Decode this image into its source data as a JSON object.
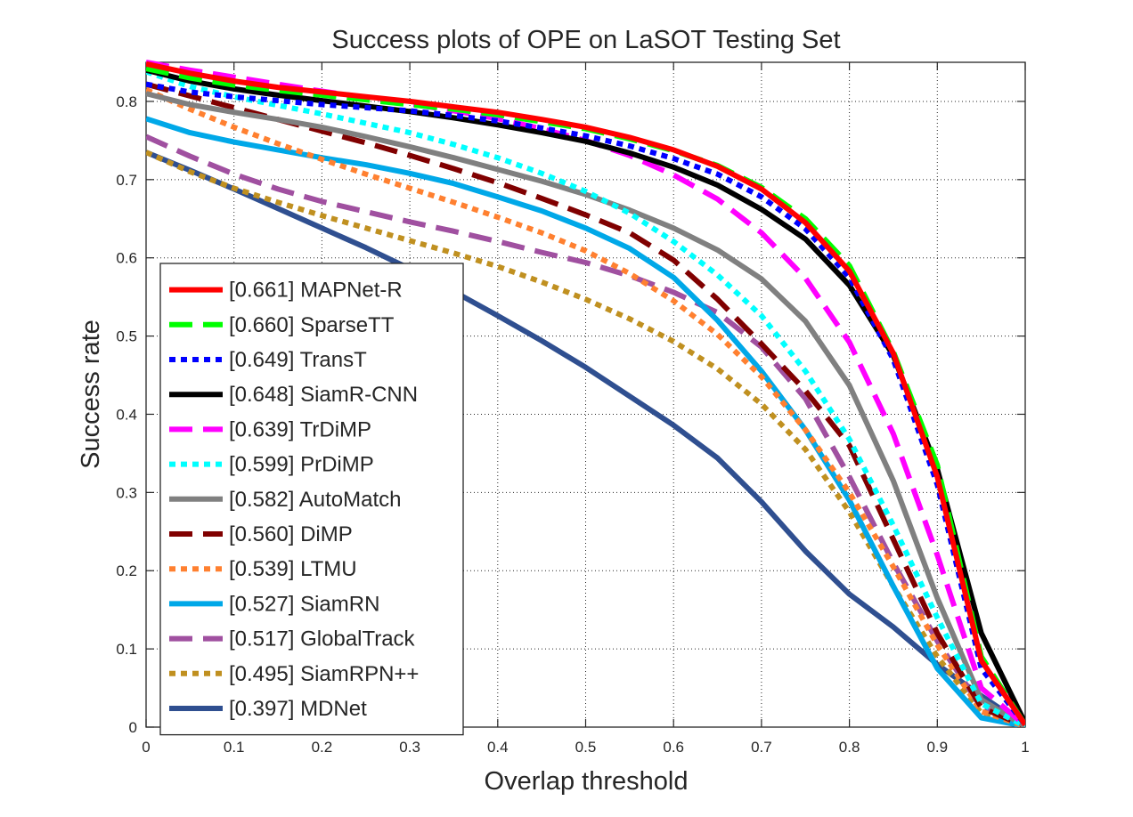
{
  "chart_data": {
    "type": "line",
    "title": "Success plots of OPE on LaSOT Testing Set",
    "xlabel": "Overlap threshold",
    "ylabel": "Success rate",
    "xlim": [
      0,
      1
    ],
    "ylim": [
      0,
      0.85
    ],
    "grid": "on",
    "legend_position": "bottom-left",
    "x_ticks": [
      0,
      0.1,
      0.2,
      0.3,
      0.4,
      0.5,
      0.6,
      0.7,
      0.8,
      0.9,
      1
    ],
    "x_tick_labels": [
      "0",
      "0.1",
      "0.2",
      "0.3",
      "0.4",
      "0.5",
      "0.6",
      "0.7",
      "0.8",
      "0.9",
      "1"
    ],
    "y_ticks": [
      0,
      0.1,
      0.2,
      0.3,
      0.4,
      0.5,
      0.6,
      0.7,
      0.8
    ],
    "y_tick_labels": [
      "0",
      "0.1",
      "0.2",
      "0.3",
      "0.4",
      "0.5",
      "0.6",
      "0.7",
      "0.8"
    ],
    "x": [
      0,
      0.05,
      0.1,
      0.15,
      0.2,
      0.25,
      0.3,
      0.35,
      0.4,
      0.45,
      0.5,
      0.55,
      0.6,
      0.65,
      0.7,
      0.75,
      0.8,
      0.85,
      0.9,
      0.95,
      1
    ],
    "series": [
      {
        "name": "MAPNet-R",
        "auc": "[0.661]",
        "label": "[0.661] MAPNet-R",
        "color": "#ff0000",
        "style": "solid",
        "values": [
          0.848,
          0.836,
          0.826,
          0.818,
          0.812,
          0.806,
          0.8,
          0.793,
          0.786,
          0.777,
          0.767,
          0.754,
          0.738,
          0.717,
          0.688,
          0.645,
          0.583,
          0.478,
          0.32,
          0.085,
          0.003
        ]
      },
      {
        "name": "SparseTT",
        "auc": "[0.660]",
        "label": "[0.660] SparseTT",
        "color": "#00ff00",
        "style": "dash",
        "values": [
          0.842,
          0.83,
          0.821,
          0.814,
          0.808,
          0.802,
          0.796,
          0.79,
          0.783,
          0.774,
          0.765,
          0.752,
          0.737,
          0.718,
          0.69,
          0.65,
          0.59,
          0.48,
          0.335,
          0.09,
          0.003
        ]
      },
      {
        "name": "TransT",
        "auc": "[0.649]",
        "label": "[0.649] TransT",
        "color": "#0000ff",
        "style": "dot",
        "values": [
          0.822,
          0.812,
          0.806,
          0.801,
          0.796,
          0.792,
          0.788,
          0.782,
          0.775,
          0.766,
          0.756,
          0.743,
          0.727,
          0.707,
          0.678,
          0.637,
          0.575,
          0.47,
          0.31,
          0.075,
          0.003
        ]
      },
      {
        "name": "SiamR-CNN",
        "auc": "[0.648]",
        "label": "[0.648] SiamR-CNN",
        "color": "#000000",
        "style": "solid",
        "values": [
          0.84,
          0.826,
          0.816,
          0.808,
          0.801,
          0.794,
          0.787,
          0.779,
          0.77,
          0.76,
          0.749,
          0.734,
          0.716,
          0.693,
          0.662,
          0.624,
          0.565,
          0.475,
          0.33,
          0.12,
          0.005
        ]
      },
      {
        "name": "TrDiMP",
        "auc": "[0.639]",
        "label": "[0.639] TrDiMP",
        "color": "#ff00ff",
        "style": "dash",
        "values": [
          0.85,
          0.84,
          0.831,
          0.822,
          0.813,
          0.805,
          0.797,
          0.788,
          0.778,
          0.765,
          0.75,
          0.731,
          0.706,
          0.675,
          0.632,
          0.574,
          0.492,
          0.375,
          0.22,
          0.05,
          0.002
        ]
      },
      {
        "name": "PrDiMP",
        "auc": "[0.599]",
        "label": "[0.599] PrDiMP",
        "color": "#00ffff",
        "style": "dot",
        "values": [
          0.838,
          0.819,
          0.806,
          0.795,
          0.784,
          0.772,
          0.76,
          0.745,
          0.728,
          0.708,
          0.685,
          0.657,
          0.621,
          0.578,
          0.526,
          0.455,
          0.368,
          0.258,
          0.14,
          0.03,
          0.001
        ]
      },
      {
        "name": "AutoMatch",
        "auc": "[0.582]",
        "label": "[0.582] AutoMatch",
        "color": "#808080",
        "style": "solid",
        "values": [
          0.81,
          0.796,
          0.786,
          0.777,
          0.767,
          0.755,
          0.742,
          0.728,
          0.713,
          0.698,
          0.681,
          0.661,
          0.638,
          0.61,
          0.573,
          0.519,
          0.437,
          0.315,
          0.165,
          0.035,
          0.001
        ]
      },
      {
        "name": "DiMP",
        "auc": "[0.560]",
        "label": "[0.560] DiMP",
        "color": "#800000",
        "style": "dash",
        "values": [
          0.822,
          0.807,
          0.792,
          0.777,
          0.762,
          0.747,
          0.731,
          0.714,
          0.696,
          0.676,
          0.655,
          0.632,
          0.597,
          0.547,
          0.49,
          0.43,
          0.36,
          0.24,
          0.12,
          0.025,
          0.001
        ]
      },
      {
        "name": "LTMU",
        "auc": "[0.539]",
        "label": "[0.539] LTMU",
        "color": "#ff8030",
        "style": "dot",
        "values": [
          0.815,
          0.79,
          0.767,
          0.746,
          0.726,
          0.707,
          0.689,
          0.671,
          0.652,
          0.632,
          0.609,
          0.58,
          0.545,
          0.502,
          0.448,
          0.38,
          0.3,
          0.205,
          0.105,
          0.02,
          0.001
        ]
      },
      {
        "name": "SiamRN",
        "auc": "[0.527]",
        "label": "[0.527] SiamRN",
        "color": "#00a8e8",
        "style": "solid",
        "values": [
          0.778,
          0.76,
          0.748,
          0.738,
          0.728,
          0.719,
          0.708,
          0.695,
          0.678,
          0.66,
          0.638,
          0.612,
          0.575,
          0.52,
          0.455,
          0.38,
          0.29,
          0.18,
          0.075,
          0.012,
          0.001
        ]
      },
      {
        "name": "GlobalTrack",
        "auc": "[0.517]",
        "label": "[0.517] GlobalTrack",
        "color": "#a050a0",
        "style": "dash",
        "values": [
          0.755,
          0.73,
          0.707,
          0.688,
          0.672,
          0.659,
          0.646,
          0.634,
          0.621,
          0.607,
          0.594,
          0.577,
          0.556,
          0.53,
          0.486,
          0.42,
          0.32,
          0.21,
          0.11,
          0.025,
          0.001
        ]
      },
      {
        "name": "SiamRPN++",
        "auc": "[0.495]",
        "label": "[0.495] SiamRPN++",
        "color": "#c09020",
        "style": "dot",
        "values": [
          0.735,
          0.71,
          0.689,
          0.671,
          0.654,
          0.638,
          0.622,
          0.606,
          0.589,
          0.569,
          0.547,
          0.522,
          0.493,
          0.458,
          0.413,
          0.355,
          0.275,
          0.18,
          0.09,
          0.018,
          0.001
        ]
      },
      {
        "name": "MDNet",
        "auc": "[0.397]",
        "label": "[0.397] MDNet",
        "color": "#2f4f90",
        "style": "solid",
        "values": [
          0.735,
          0.712,
          0.688,
          0.663,
          0.638,
          0.613,
          0.586,
          0.557,
          0.526,
          0.494,
          0.46,
          0.423,
          0.386,
          0.344,
          0.288,
          0.225,
          0.17,
          0.128,
          0.08,
          0.04,
          0.002
        ]
      }
    ]
  }
}
